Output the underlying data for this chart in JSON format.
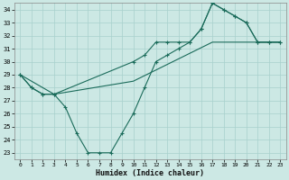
{
  "xlabel": "Humidex (Indice chaleur)",
  "background_color": "#cce8e4",
  "grid_color": "#a8d0cc",
  "line_color": "#1a6b5a",
  "xlim": [
    -0.5,
    23.5
  ],
  "ylim": [
    22.5,
    34.5
  ],
  "xticks": [
    0,
    1,
    2,
    3,
    4,
    5,
    6,
    7,
    8,
    9,
    10,
    11,
    12,
    13,
    14,
    15,
    16,
    17,
    18,
    19,
    20,
    21,
    22,
    23
  ],
  "yticks": [
    23,
    24,
    25,
    26,
    27,
    28,
    29,
    30,
    31,
    32,
    33,
    34
  ],
  "line_straight_x": [
    0,
    3,
    10,
    17,
    21,
    22,
    23
  ],
  "line_straight_y": [
    29.0,
    27.5,
    28.5,
    31.5,
    31.5,
    31.5,
    31.5
  ],
  "line_upper_x": [
    0,
    1,
    2,
    3,
    10,
    11,
    12,
    13,
    14,
    15,
    16,
    17,
    18,
    19,
    20,
    21,
    22,
    23
  ],
  "line_upper_y": [
    29.0,
    28.0,
    27.5,
    27.5,
    30.0,
    30.5,
    31.5,
    31.5,
    31.5,
    31.5,
    32.5,
    34.5,
    34.0,
    33.5,
    33.0,
    31.5,
    31.5,
    31.5
  ],
  "line_lower_x": [
    0,
    1,
    2,
    3,
    4,
    5,
    6,
    7,
    8,
    9,
    10,
    11,
    12,
    13,
    14,
    15,
    16,
    17,
    18,
    19,
    20,
    21,
    22,
    23
  ],
  "line_lower_y": [
    29.0,
    28.0,
    27.5,
    27.5,
    26.5,
    24.5,
    23.0,
    23.0,
    23.0,
    24.5,
    26.0,
    28.0,
    30.0,
    30.5,
    31.0,
    31.5,
    32.5,
    34.5,
    34.0,
    33.5,
    33.0,
    31.5,
    31.5,
    31.5
  ]
}
